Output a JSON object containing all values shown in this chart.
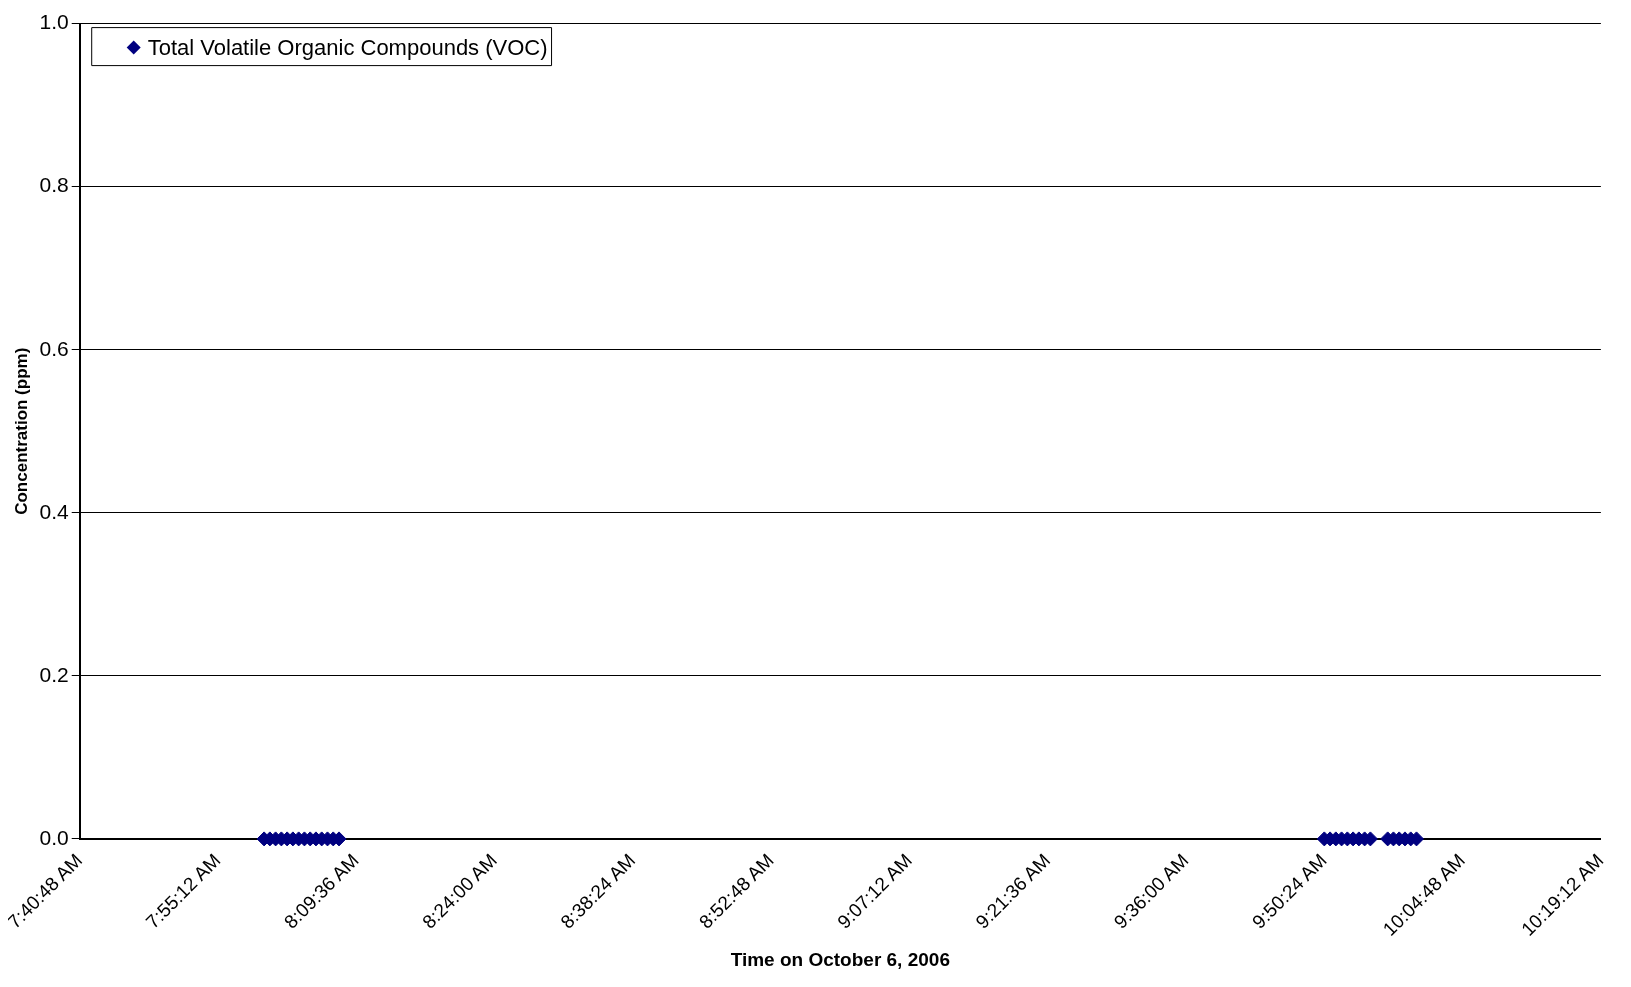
{
  "chart_data": {
    "type": "scatter",
    "xlabel": "Time on October 6, 2006",
    "ylabel": "Concentration (ppm)",
    "series": [
      {
        "name": "Total Volatile Organic Compounds (VOC)",
        "color": "#000080",
        "x": [
          8.0,
          8.01,
          8.02,
          8.03,
          8.04,
          8.05,
          8.06,
          8.07,
          8.08,
          8.09,
          8.1,
          8.11,
          8.12,
          8.13,
          9.84,
          9.85,
          9.86,
          9.87,
          9.88,
          9.89,
          9.9,
          9.91,
          9.92,
          9.95,
          9.96,
          9.97,
          9.98,
          9.99,
          10.0
        ],
        "values": [
          0,
          0,
          0,
          0,
          0,
          0,
          0,
          0,
          0,
          0,
          0,
          0,
          0,
          0,
          0,
          0,
          0,
          0,
          0,
          0,
          0,
          0,
          0,
          0,
          0,
          0,
          0,
          0,
          0
        ]
      }
    ],
    "xlim": [
      7.68,
      10.32
    ],
    "xticks": [
      {
        "value": 7.68,
        "label": "7:40:48 AM"
      },
      {
        "value": 7.92,
        "label": "7:55:12 AM"
      },
      {
        "value": 8.16,
        "label": "8:09:36 AM"
      },
      {
        "value": 8.4,
        "label": "8:24:00 AM"
      },
      {
        "value": 8.64,
        "label": "8:38:24 AM"
      },
      {
        "value": 8.88,
        "label": "8:52:48 AM"
      },
      {
        "value": 9.12,
        "label": "9:07:12 AM"
      },
      {
        "value": 9.36,
        "label": "9:21:36 AM"
      },
      {
        "value": 9.6,
        "label": "9:36:00 AM"
      },
      {
        "value": 9.84,
        "label": "9:50:24 AM"
      },
      {
        "value": 10.08,
        "label": "10:04:48 AM"
      },
      {
        "value": 10.32,
        "label": "10:19:12 AM"
      }
    ],
    "ylim": [
      0,
      1
    ],
    "yticks": [
      {
        "value": 0,
        "label": "0.0"
      },
      {
        "value": 0.2,
        "label": "0.2"
      },
      {
        "value": 0.4,
        "label": "0.4"
      },
      {
        "value": 0.6,
        "label": "0.6"
      },
      {
        "value": 0.8,
        "label": "0.8"
      },
      {
        "value": 1,
        "label": "1.0"
      }
    ],
    "grid": "y",
    "legend": "top left",
    "marker": "diamond"
  }
}
